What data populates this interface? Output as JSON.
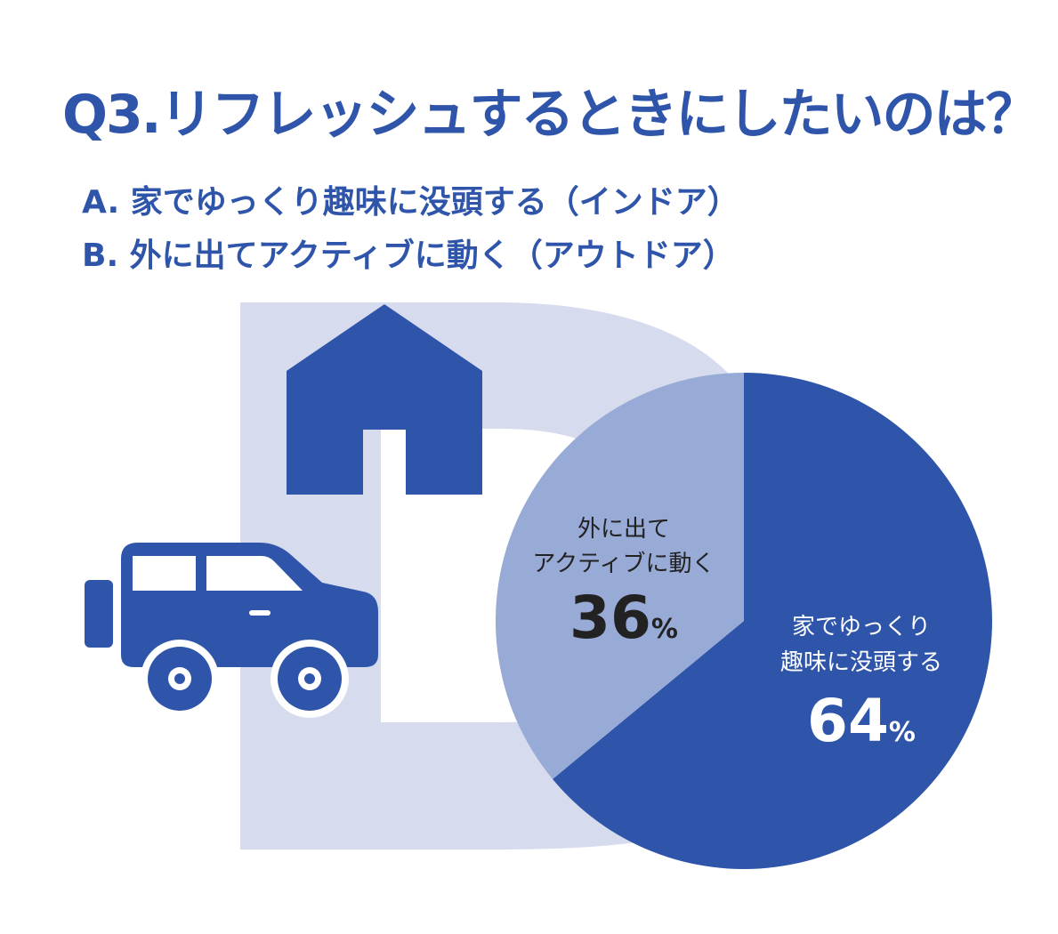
{
  "title": "Q3.リフレッシュするときにしたいのは？",
  "options": [
    {
      "text": "A. 家でゆっくり趣味に没頭する（インドア）"
    },
    {
      "text": "B. 外に出てアクティブに動く（アウトドア）"
    }
  ],
  "colors": {
    "accent": "#2f55aa",
    "slice_light": "#98aad6",
    "backdrop": "#d6dcee"
  },
  "icons": [
    "house-icon",
    "car-icon"
  ],
  "chart_data": {
    "type": "pie",
    "slices": [
      {
        "label_lines": [
          "家でゆっくり",
          "趣味に没頭する"
        ],
        "value": 64,
        "value_text": "64",
        "unit": "%",
        "color": "#2f55aa"
      },
      {
        "label_lines": [
          "外に出て",
          "アクティブに動く"
        ],
        "value": 36,
        "value_text": "36",
        "unit": "%",
        "color": "#98aad6"
      }
    ]
  }
}
